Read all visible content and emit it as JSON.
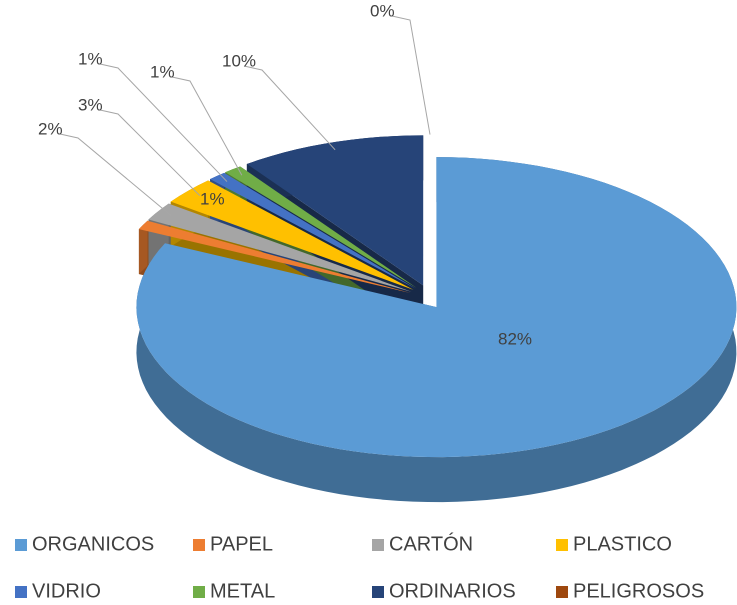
{
  "chart_data": {
    "type": "pie",
    "categories": [
      "ORGANICOS",
      "PAPEL",
      "CARTÓN",
      "PLASTICO",
      "VIDRIO",
      "METAL",
      "ORDINARIOS",
      "PELIGROSOS"
    ],
    "values": [
      82,
      1,
      2,
      3,
      1,
      1,
      10,
      0
    ],
    "value_labels": [
      "82%",
      "1%",
      "2%",
      "3%",
      "1%",
      "1%",
      "10%",
      "0%"
    ],
    "colors": [
      "#5b9bd5",
      "#ed7d31",
      "#a5a5a5",
      "#ffc000",
      "#4472c4",
      "#70ad47",
      "#264478",
      "#9e480e"
    ],
    "legend": "bottom"
  }
}
